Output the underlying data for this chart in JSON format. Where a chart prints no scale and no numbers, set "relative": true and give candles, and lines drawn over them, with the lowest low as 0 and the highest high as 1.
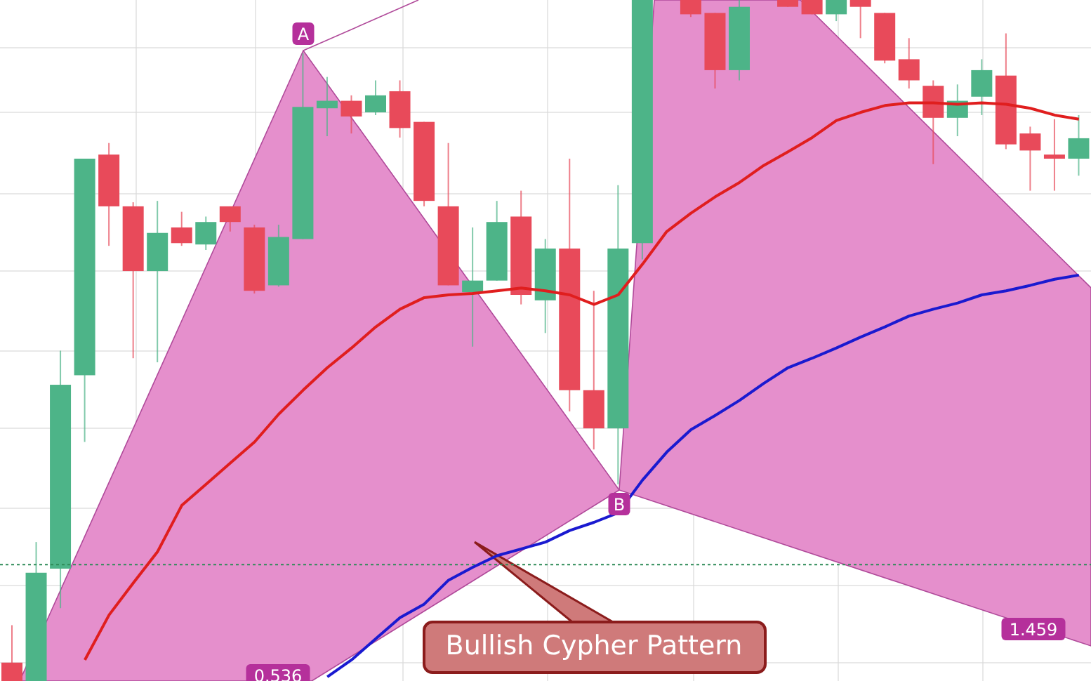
{
  "chart_data": {
    "type": "candlestick",
    "relative": true,
    "categories": [
      null,
      null,
      null,
      null,
      null,
      null,
      null,
      null,
      null,
      null,
      null,
      null,
      null,
      null,
      null,
      null,
      null,
      null,
      null,
      null,
      null,
      null,
      null,
      null,
      null,
      null,
      null,
      null,
      null,
      null,
      null,
      null,
      null,
      null,
      null,
      null,
      null,
      null,
      null,
      null,
      null,
      null,
      null,
      null,
      null
    ],
    "ohlc": [
      [
        0.027,
        0.082,
        0,
        0
      ],
      [
        0,
        0.204,
        0,
        0.159
      ],
      [
        0.165,
        0.485,
        0.107,
        0.435
      ],
      [
        0.449,
        0.767,
        0.351,
        0.767
      ],
      [
        0.773,
        0.79,
        0.639,
        0.697
      ],
      [
        0.697,
        0.703,
        0.474,
        0.602
      ],
      [
        0.602,
        0.705,
        0.468,
        0.658
      ],
      [
        0.666,
        0.689,
        0.639,
        0.643
      ],
      [
        0.641,
        0.682,
        0.633,
        0.674
      ],
      [
        0.697,
        0.697,
        0.66,
        0.674
      ],
      [
        0.666,
        0.67,
        0.569,
        0.573
      ],
      [
        0.581,
        0.67,
        0.579,
        0.652
      ],
      [
        0.649,
        0.922,
        0.649,
        0.843
      ],
      [
        0.841,
        0.887,
        0.8,
        0.852
      ],
      [
        0.852,
        0.86,
        0.804,
        0.829
      ],
      [
        0.835,
        0.882,
        0.831,
        0.86
      ],
      [
        0.866,
        0.882,
        0.798,
        0.812
      ],
      [
        0.821,
        0.821,
        0.697,
        0.705
      ],
      [
        0.697,
        0.79,
        0.581,
        0.581
      ],
      [
        0.571,
        0.666,
        0.491,
        0.588
      ],
      [
        0.588,
        0.705,
        0.588,
        0.674
      ],
      [
        0.682,
        0.72,
        0.553,
        0.567
      ],
      [
        0.559,
        0.649,
        0.511,
        0.635
      ],
      [
        0.635,
        0.767,
        0.396,
        0.427
      ],
      [
        0.427,
        0.573,
        0.34,
        0.371
      ],
      [
        0.371,
        0.728,
        0.289,
        0.635
      ],
      [
        0.643,
        1,
        0.619,
        1
      ],
      null,
      [
        1,
        1,
        0.975,
        0.979
      ],
      [
        0.981,
        0.981,
        0.87,
        0.897
      ],
      [
        0.897,
        1,
        0.882,
        0.99
      ],
      null,
      [
        1,
        1,
        0.99,
        0.99
      ],
      [
        1,
        1,
        0.979,
        0.979
      ],
      [
        0.979,
        1,
        0.969,
        1
      ],
      [
        1,
        1,
        0.944,
        0.99
      ],
      [
        0.981,
        0.981,
        0.907,
        0.911
      ],
      [
        0.913,
        0.944,
        0.87,
        0.882
      ],
      [
        0.874,
        0.882,
        0.759,
        0.827
      ],
      [
        0.827,
        0.876,
        0.8,
        0.852
      ],
      [
        0.858,
        0.913,
        0.831,
        0.897
      ],
      [
        0.889,
        0.951,
        0.781,
        0.788
      ],
      [
        0.804,
        0.814,
        0.72,
        0.779
      ],
      [
        0.773,
        0.825,
        0.72,
        0.767
      ],
      [
        0.767,
        0.831,
        0.742,
        0.797
      ]
    ],
    "series": [
      {
        "type": "line",
        "color": "#e01e1e",
        "values": [
          null,
          null,
          null,
          0.031,
          0.097,
          0.144,
          0.19,
          0.258,
          0.289,
          0.32,
          0.351,
          0.392,
          0.427,
          0.46,
          0.489,
          0.52,
          0.546,
          0.563,
          0.567,
          0.569,
          0.573,
          0.577,
          0.573,
          0.567,
          0.553,
          0.567,
          0.612,
          0.66,
          0.687,
          0.711,
          0.732,
          0.757,
          0.777,
          0.798,
          0.823,
          0.835,
          0.845,
          0.849,
          0.849,
          0.847,
          0.849,
          0.847,
          0.841,
          0.831,
          0.825
        ]
      },
      {
        "type": "line",
        "color": "#1a1ad0",
        "values": [
          null,
          null,
          null,
          null,
          null,
          null,
          null,
          null,
          null,
          null,
          null,
          null,
          null,
          0.006,
          0.031,
          0.062,
          0.093,
          0.113,
          0.148,
          0.167,
          0.184,
          0.194,
          0.204,
          0.221,
          0.233,
          0.247,
          0.295,
          0.336,
          0.369,
          0.39,
          0.412,
          0.437,
          0.46,
          0.474,
          0.489,
          0.505,
          0.52,
          0.536,
          0.546,
          0.555,
          0.567,
          0.573,
          0.581,
          0.59,
          0.596
        ]
      }
    ],
    "ref_lines": [
      {
        "axis": "y",
        "value": 0.171,
        "color": "#2e8b57",
        "line_style": "dotted"
      }
    ],
    "grid": true,
    "marker": "none",
    "line_style": "solid",
    "annotations": [
      "A",
      "B",
      "0.536",
      "1.459",
      "Bullish Cypher Pattern"
    ]
  }
}
